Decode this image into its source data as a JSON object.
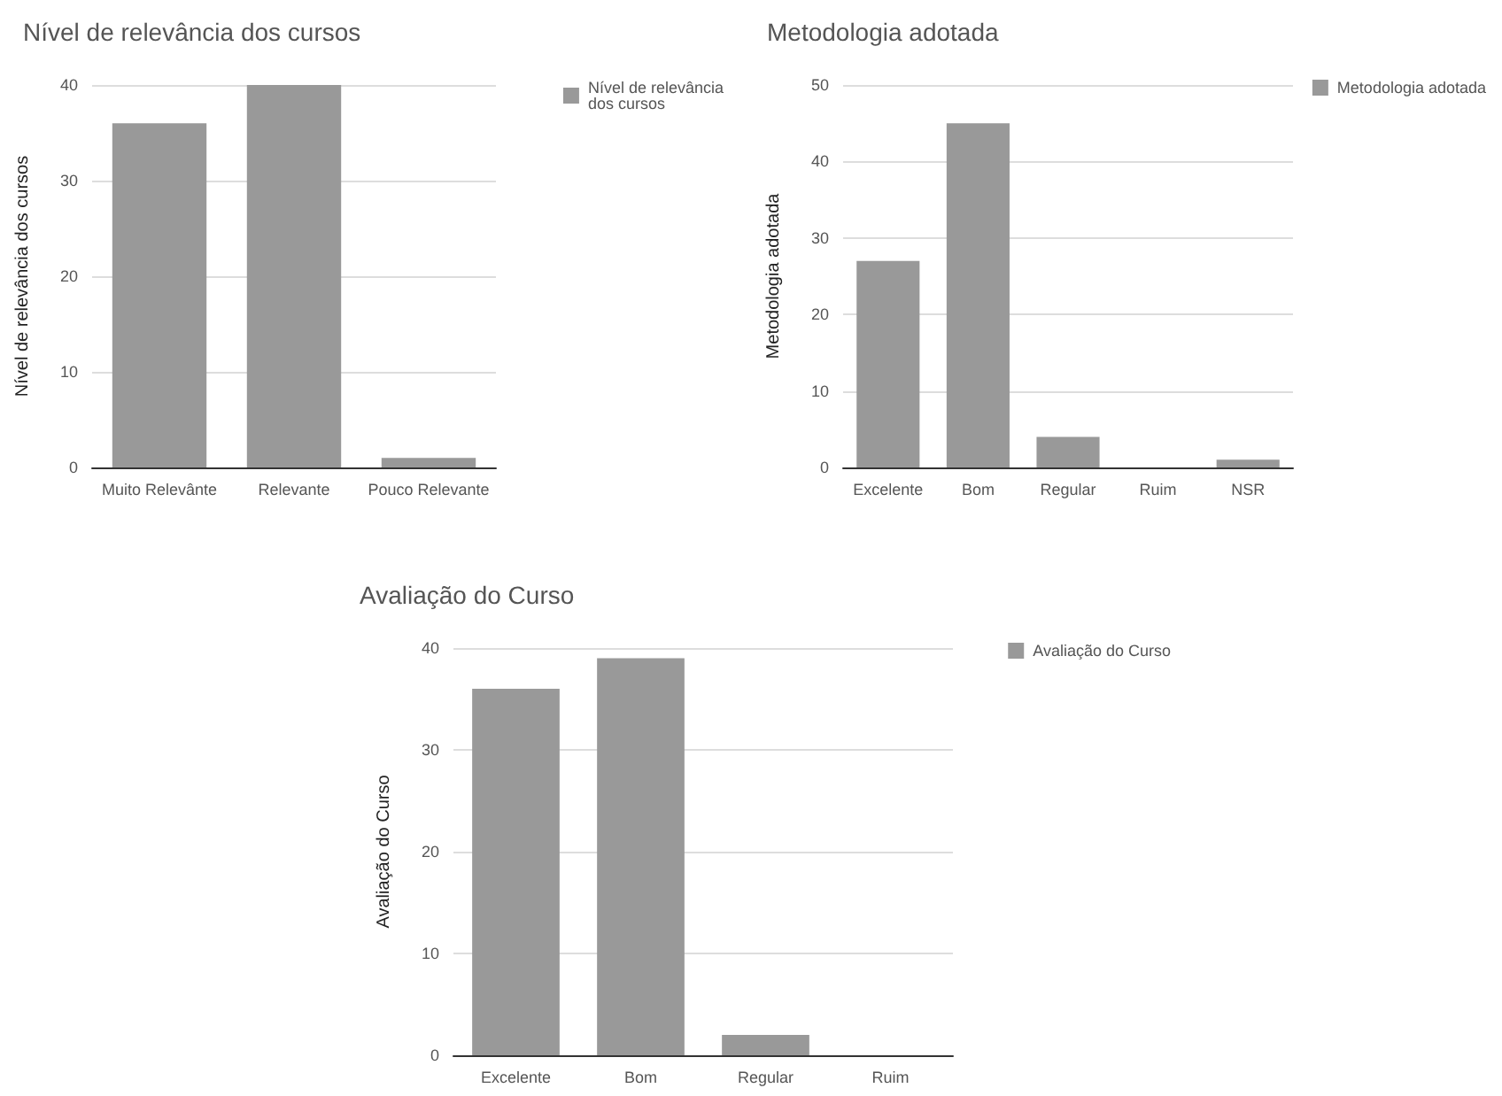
{
  "chart_data": [
    {
      "type": "bar",
      "title": "Nível de relevância dos cursos",
      "ylabel": "Nível de relevância dos cursos",
      "categories": [
        "Muito Relevânte",
        "Relevante",
        "Pouco Relevante"
      ],
      "series": [
        {
          "name": "Nível de relevância dos cursos",
          "color": "#999999",
          "values": [
            36,
            40,
            1
          ]
        }
      ],
      "ylim": [
        0,
        40
      ],
      "yticks": [
        0,
        10,
        20,
        30,
        40
      ],
      "grid": "y",
      "legend": "top right"
    },
    {
      "type": "bar",
      "title": "Metodologia adotada",
      "ylabel": "Metodologia adotada",
      "categories": [
        "Excelente",
        "Bom",
        "Regular",
        "Ruim",
        "NSR"
      ],
      "series": [
        {
          "name": "Metodologia adotada",
          "color": "#999999",
          "values": [
            27,
            45,
            4,
            0,
            1
          ]
        }
      ],
      "ylim": [
        0,
        50
      ],
      "yticks": [
        0,
        10,
        20,
        30,
        40,
        50
      ],
      "grid": "y",
      "legend": "top right"
    },
    {
      "type": "bar",
      "title": "Avaliação do Curso",
      "ylabel": "Avaliação do Curso",
      "categories": [
        "Excelente",
        "Bom",
        "Regular",
        "Ruim"
      ],
      "series": [
        {
          "name": "Avaliação do Curso",
          "color": "#999999",
          "values": [
            36,
            39,
            2,
            0
          ]
        }
      ],
      "ylim": [
        0,
        40
      ],
      "yticks": [
        0,
        10,
        20,
        30,
        40
      ],
      "grid": "y",
      "legend": "top right"
    }
  ]
}
